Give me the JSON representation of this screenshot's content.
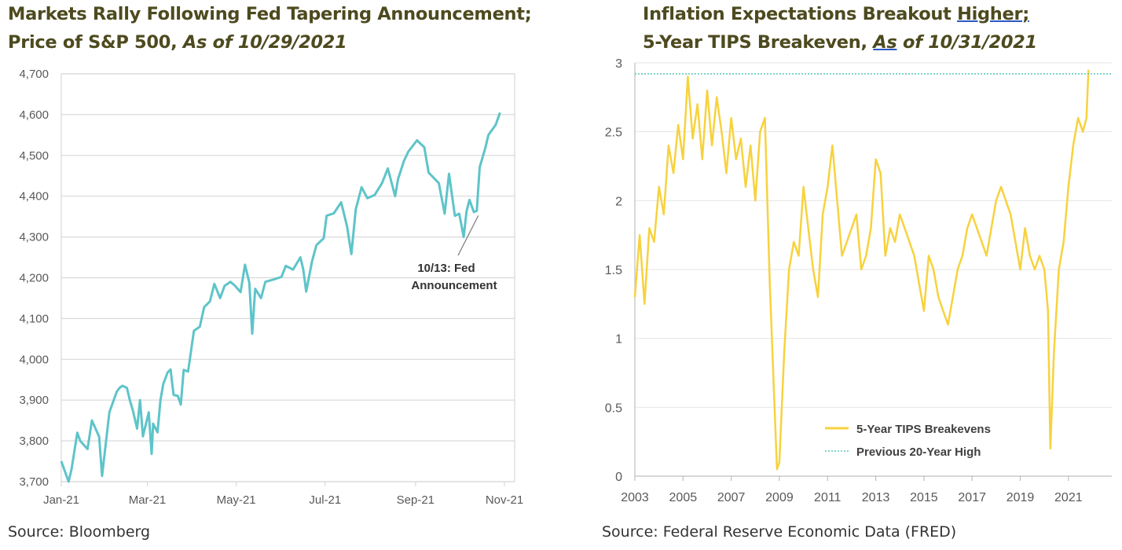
{
  "left_panel": {
    "title_line1": "Markets Rally Following Fed Tapering Announcement;",
    "title_line2_plain": "Price of S&P 500, ",
    "title_line2_italic": "As of 10/29/2021",
    "source": "Source: Bloomberg"
  },
  "right_panel": {
    "title_line1_plain": "Inflation Expectations Breakout ",
    "title_line1_underlined": "Higher;",
    "title_line2_plain": "5-Year TIPS Breakeven, ",
    "title_line2_underlined_italic": "As",
    "title_line2_italic": " of 10/31/2021",
    "source": "Source: Federal Reserve Economic Data (FRED)"
  },
  "colors": {
    "sp500_line": "#5ec4c9",
    "tips_line": "#f7d23e",
    "prev_high_line": "#56c8b8",
    "grid": "#d9d9d9",
    "axis_text": "#595959",
    "title_text": "#4d4a1f"
  },
  "chart_data": [
    {
      "type": "line",
      "ylim": [
        3700,
        4700
      ],
      "yticks": [
        "3,700",
        "3,800",
        "3,900",
        "4,000",
        "4,100",
        "4,200",
        "4,300",
        "4,400",
        "4,500",
        "4,600",
        "4,700"
      ],
      "xticks": [
        "Jan-21",
        "Mar-21",
        "May-21",
        "Jul-21",
        "Sep-21",
        "Nov-21"
      ],
      "xlim": [
        "2021-01-01",
        "2021-11-08"
      ],
      "grid": true,
      "annotation": {
        "line1": "10/13: Fed",
        "line2": "Announcement",
        "date": "2021-10-13",
        "value": 4364
      },
      "series": [
        {
          "x": [
            "2021-01-01",
            "2021-01-06",
            "2021-01-08",
            "2021-01-12",
            "2021-01-14",
            "2021-01-19",
            "2021-01-22",
            "2021-01-27",
            "2021-01-29",
            "2021-02-03",
            "2021-02-05",
            "2021-02-08",
            "2021-02-10",
            "2021-02-12",
            "2021-02-15",
            "2021-02-17",
            "2021-02-19",
            "2021-02-22",
            "2021-02-24",
            "2021-02-26",
            "2021-03-02",
            "2021-03-04",
            "2021-03-05",
            "2021-03-08",
            "2021-03-10",
            "2021-03-12",
            "2021-03-15",
            "2021-03-17",
            "2021-03-19",
            "2021-03-22",
            "2021-03-24",
            "2021-03-26",
            "2021-03-29",
            "2021-03-31",
            "2021-04-02",
            "2021-04-06",
            "2021-04-09",
            "2021-04-13",
            "2021-04-16",
            "2021-04-20",
            "2021-04-23",
            "2021-04-27",
            "2021-04-30",
            "2021-05-04",
            "2021-05-07",
            "2021-05-10",
            "2021-05-12",
            "2021-05-14",
            "2021-05-18",
            "2021-05-21",
            "2021-05-26",
            "2021-06-01",
            "2021-06-04",
            "2021-06-09",
            "2021-06-14",
            "2021-06-16",
            "2021-06-18",
            "2021-06-22",
            "2021-06-25",
            "2021-06-30",
            "2021-07-02",
            "2021-07-07",
            "2021-07-12",
            "2021-07-16",
            "2021-07-19",
            "2021-07-22",
            "2021-07-26",
            "2021-07-30",
            "2021-08-04",
            "2021-08-09",
            "2021-08-13",
            "2021-08-18",
            "2021-08-20",
            "2021-08-24",
            "2021-08-27",
            "2021-09-02",
            "2021-09-07",
            "2021-09-10",
            "2021-09-14",
            "2021-09-17",
            "2021-09-21",
            "2021-09-24",
            "2021-09-28",
            "2021-10-01",
            "2021-10-04",
            "2021-10-06",
            "2021-10-08",
            "2021-10-11",
            "2021-10-13",
            "2021-10-15",
            "2021-10-19",
            "2021-10-21",
            "2021-10-26",
            "2021-10-29"
          ],
          "y": [
            3750,
            3700,
            3730,
            3820,
            3800,
            3780,
            3850,
            3810,
            3714,
            3870,
            3890,
            3920,
            3930,
            3935,
            3930,
            3900,
            3876,
            3830,
            3900,
            3811,
            3870,
            3768,
            3842,
            3821,
            3900,
            3940,
            3968,
            3975,
            3913,
            3910,
            3889,
            3974,
            3970,
            4020,
            4070,
            4080,
            4128,
            4142,
            4185,
            4150,
            4180,
            4190,
            4181,
            4165,
            4232,
            4188,
            4063,
            4173,
            4150,
            4190,
            4195,
            4202,
            4229,
            4220,
            4250,
            4220,
            4166,
            4240,
            4280,
            4297,
            4352,
            4358,
            4385,
            4327,
            4258,
            4368,
            4422,
            4395,
            4403,
            4432,
            4468,
            4400,
            4442,
            4486,
            4509,
            4537,
            4520,
            4458,
            4443,
            4432,
            4357,
            4455,
            4352,
            4357,
            4300,
            4363,
            4391,
            4361,
            4364,
            4471,
            4520,
            4550,
            4575,
            4605
          ]
        }
      ]
    },
    {
      "type": "line",
      "ylim": [
        0,
        3
      ],
      "yticks": [
        "0",
        "0.5",
        "1",
        "1.5",
        "2",
        "2.5",
        "3"
      ],
      "xticks": [
        "2003",
        "2005",
        "2007",
        "2009",
        "2011",
        "2013",
        "2015",
        "2017",
        "2019",
        "2021"
      ],
      "xlim": [
        2003,
        2022.8
      ],
      "grid": true,
      "legend_position": "bottom-center",
      "series": [
        {
          "name": "5-Year TIPS Breakevens",
          "x": [
            2003.0,
            2003.2,
            2003.4,
            2003.6,
            2003.8,
            2004.0,
            2004.2,
            2004.4,
            2004.6,
            2004.8,
            2005.0,
            2005.2,
            2005.4,
            2005.6,
            2005.8,
            2006.0,
            2006.2,
            2006.4,
            2006.6,
            2006.8,
            2007.0,
            2007.2,
            2007.4,
            2007.6,
            2007.8,
            2008.0,
            2008.2,
            2008.4,
            2008.6,
            2008.8,
            2008.9,
            2009.0,
            2009.2,
            2009.4,
            2009.6,
            2009.8,
            2010.0,
            2010.2,
            2010.4,
            2010.6,
            2010.8,
            2011.0,
            2011.2,
            2011.4,
            2011.6,
            2011.8,
            2012.0,
            2012.2,
            2012.4,
            2012.6,
            2012.8,
            2013.0,
            2013.2,
            2013.4,
            2013.6,
            2013.8,
            2014.0,
            2014.2,
            2014.4,
            2014.6,
            2014.8,
            2015.0,
            2015.2,
            2015.4,
            2015.6,
            2015.8,
            2016.0,
            2016.2,
            2016.4,
            2016.6,
            2016.8,
            2017.0,
            2017.2,
            2017.4,
            2017.6,
            2017.8,
            2018.0,
            2018.2,
            2018.4,
            2018.6,
            2018.8,
            2019.0,
            2019.2,
            2019.4,
            2019.6,
            2019.8,
            2020.0,
            2020.15,
            2020.25,
            2020.4,
            2020.6,
            2020.8,
            2021.0,
            2021.2,
            2021.4,
            2021.6,
            2021.75,
            2021.83
          ],
          "y": [
            1.3,
            1.75,
            1.25,
            1.8,
            1.7,
            2.1,
            1.9,
            2.4,
            2.2,
            2.55,
            2.3,
            2.9,
            2.45,
            2.7,
            2.3,
            2.8,
            2.4,
            2.75,
            2.5,
            2.2,
            2.6,
            2.3,
            2.45,
            2.1,
            2.4,
            2.0,
            2.5,
            2.6,
            1.4,
            0.5,
            0.05,
            0.1,
            0.9,
            1.5,
            1.7,
            1.6,
            2.1,
            1.8,
            1.5,
            1.3,
            1.9,
            2.1,
            2.4,
            2.0,
            1.6,
            1.7,
            1.8,
            1.9,
            1.5,
            1.6,
            1.8,
            2.3,
            2.2,
            1.6,
            1.8,
            1.7,
            1.9,
            1.8,
            1.7,
            1.6,
            1.4,
            1.2,
            1.6,
            1.5,
            1.3,
            1.2,
            1.1,
            1.3,
            1.5,
            1.6,
            1.8,
            1.9,
            1.8,
            1.7,
            1.6,
            1.8,
            2.0,
            2.1,
            2.0,
            1.9,
            1.7,
            1.5,
            1.8,
            1.6,
            1.5,
            1.6,
            1.5,
            1.2,
            0.2,
            0.9,
            1.5,
            1.7,
            2.1,
            2.4,
            2.6,
            2.5,
            2.6,
            2.95
          ]
        },
        {
          "name": "Previous 20-Year High",
          "x": [
            2003,
            2022.8
          ],
          "y": [
            2.92,
            2.92
          ]
        }
      ]
    }
  ]
}
